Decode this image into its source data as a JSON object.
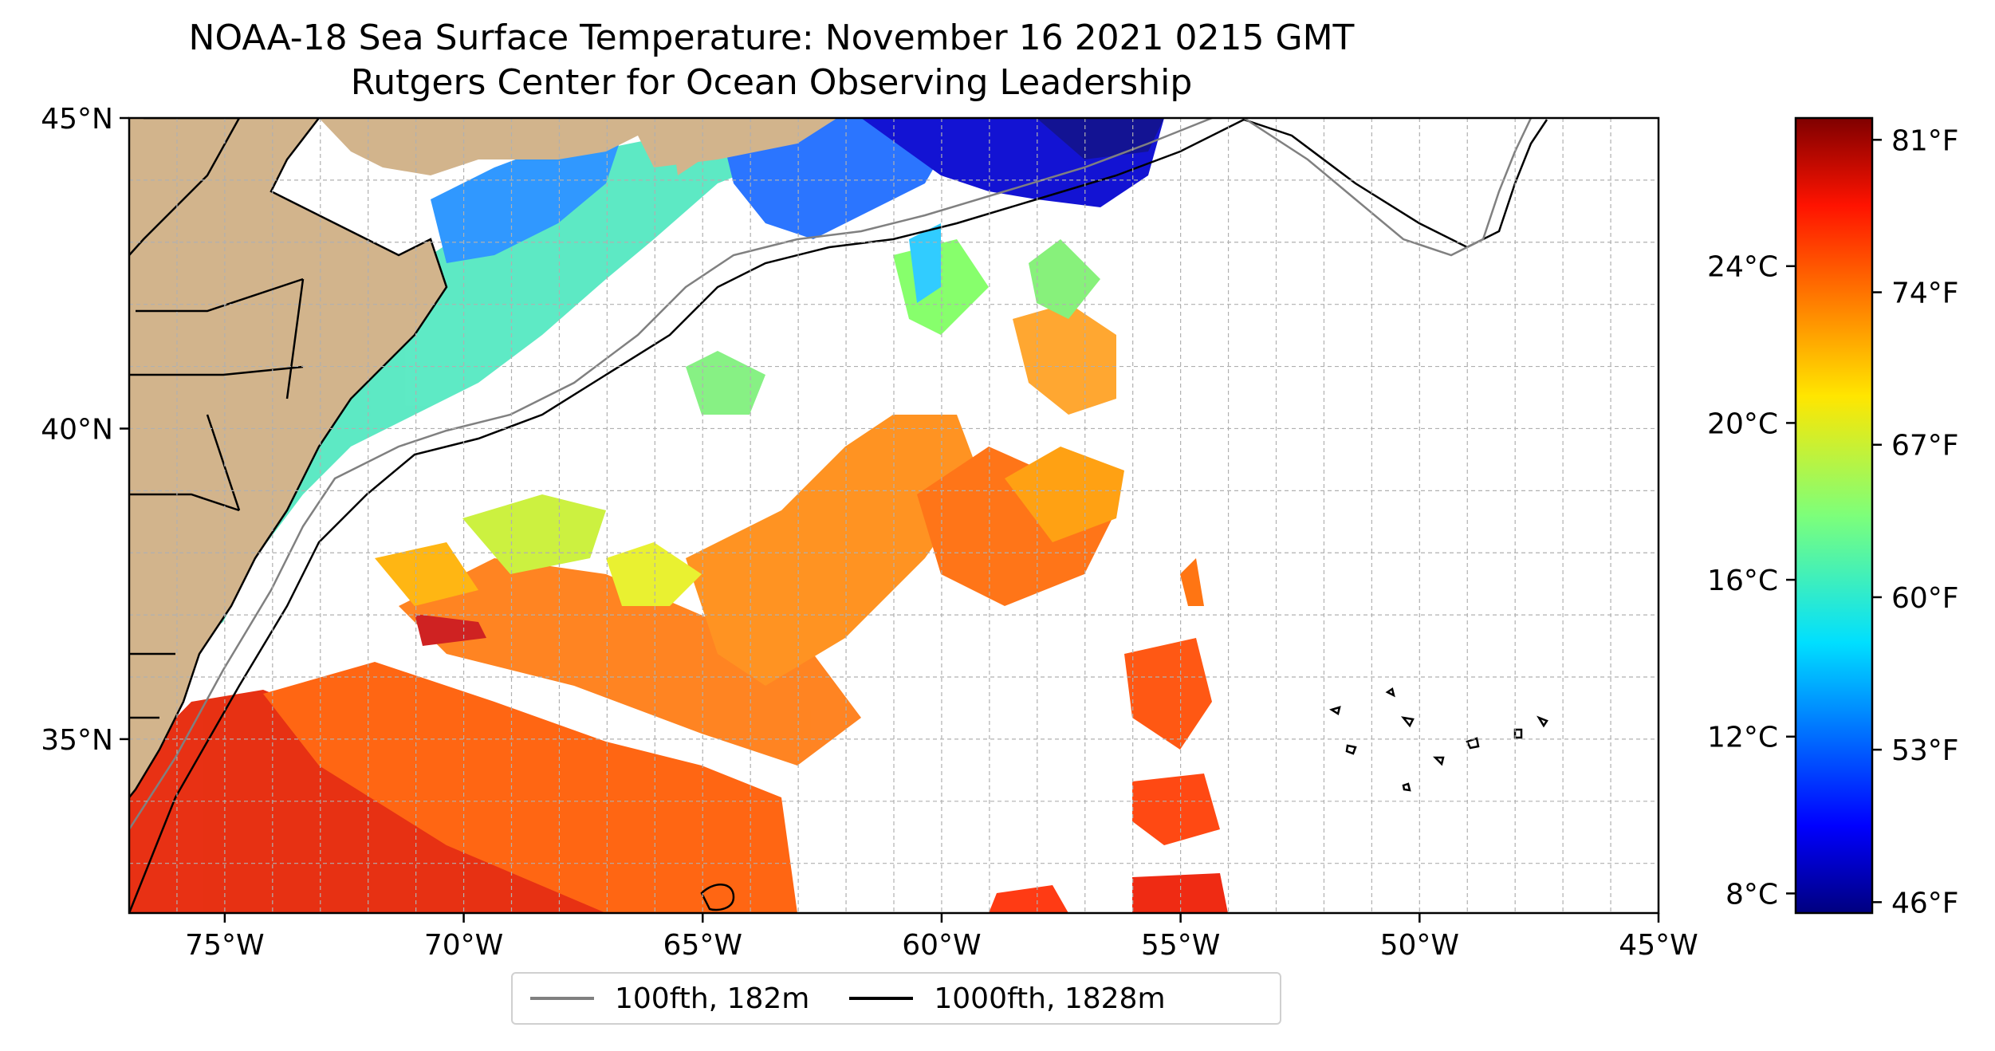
{
  "title": "NOAA-18 Sea Surface Temperature: November 16 2021 0215 GMT",
  "subtitle": "Rutgers Center for Ocean Observing Leadership",
  "map": {
    "lon_range": [
      -77,
      -45
    ],
    "lat_range": [
      32.2,
      45
    ],
    "lon_ticks": [
      {
        "value": -75,
        "label": "75°W"
      },
      {
        "value": -70,
        "label": "70°W"
      },
      {
        "value": -65,
        "label": "65°W"
      },
      {
        "value": -60,
        "label": "60°W"
      },
      {
        "value": -55,
        "label": "55°W"
      },
      {
        "value": -50,
        "label": "50°W"
      },
      {
        "value": -45,
        "label": "45°W"
      }
    ],
    "lat_ticks": [
      {
        "value": 45,
        "label": "45°N"
      },
      {
        "value": 40,
        "label": "40°N"
      },
      {
        "value": 35,
        "label": "35°N"
      }
    ],
    "gridlines": true,
    "land_color": "#d2b48c",
    "colormap": "jet"
  },
  "colorbar": {
    "fahrenheit_range": [
      45.5,
      82
    ],
    "fahrenheit_ticks": [
      {
        "value": 81,
        "label": "81°F"
      },
      {
        "value": 74,
        "label": "74°F"
      },
      {
        "value": 67,
        "label": "67°F"
      },
      {
        "value": 60,
        "label": "60°F"
      },
      {
        "value": 53,
        "label": "53°F"
      },
      {
        "value": 46,
        "label": "46°F"
      }
    ],
    "celsius_ticks": [
      {
        "value": 24,
        "label": "24°C"
      },
      {
        "value": 20,
        "label": "20°C"
      },
      {
        "value": 16,
        "label": "16°C"
      },
      {
        "value": 12,
        "label": "12°C"
      },
      {
        "value": 8,
        "label": "8°C"
      }
    ]
  },
  "legend": {
    "items": [
      {
        "label": "100fth, 182m",
        "color": "#808080"
      },
      {
        "label": "1000fth, 1828m",
        "color": "#000000"
      }
    ]
  }
}
